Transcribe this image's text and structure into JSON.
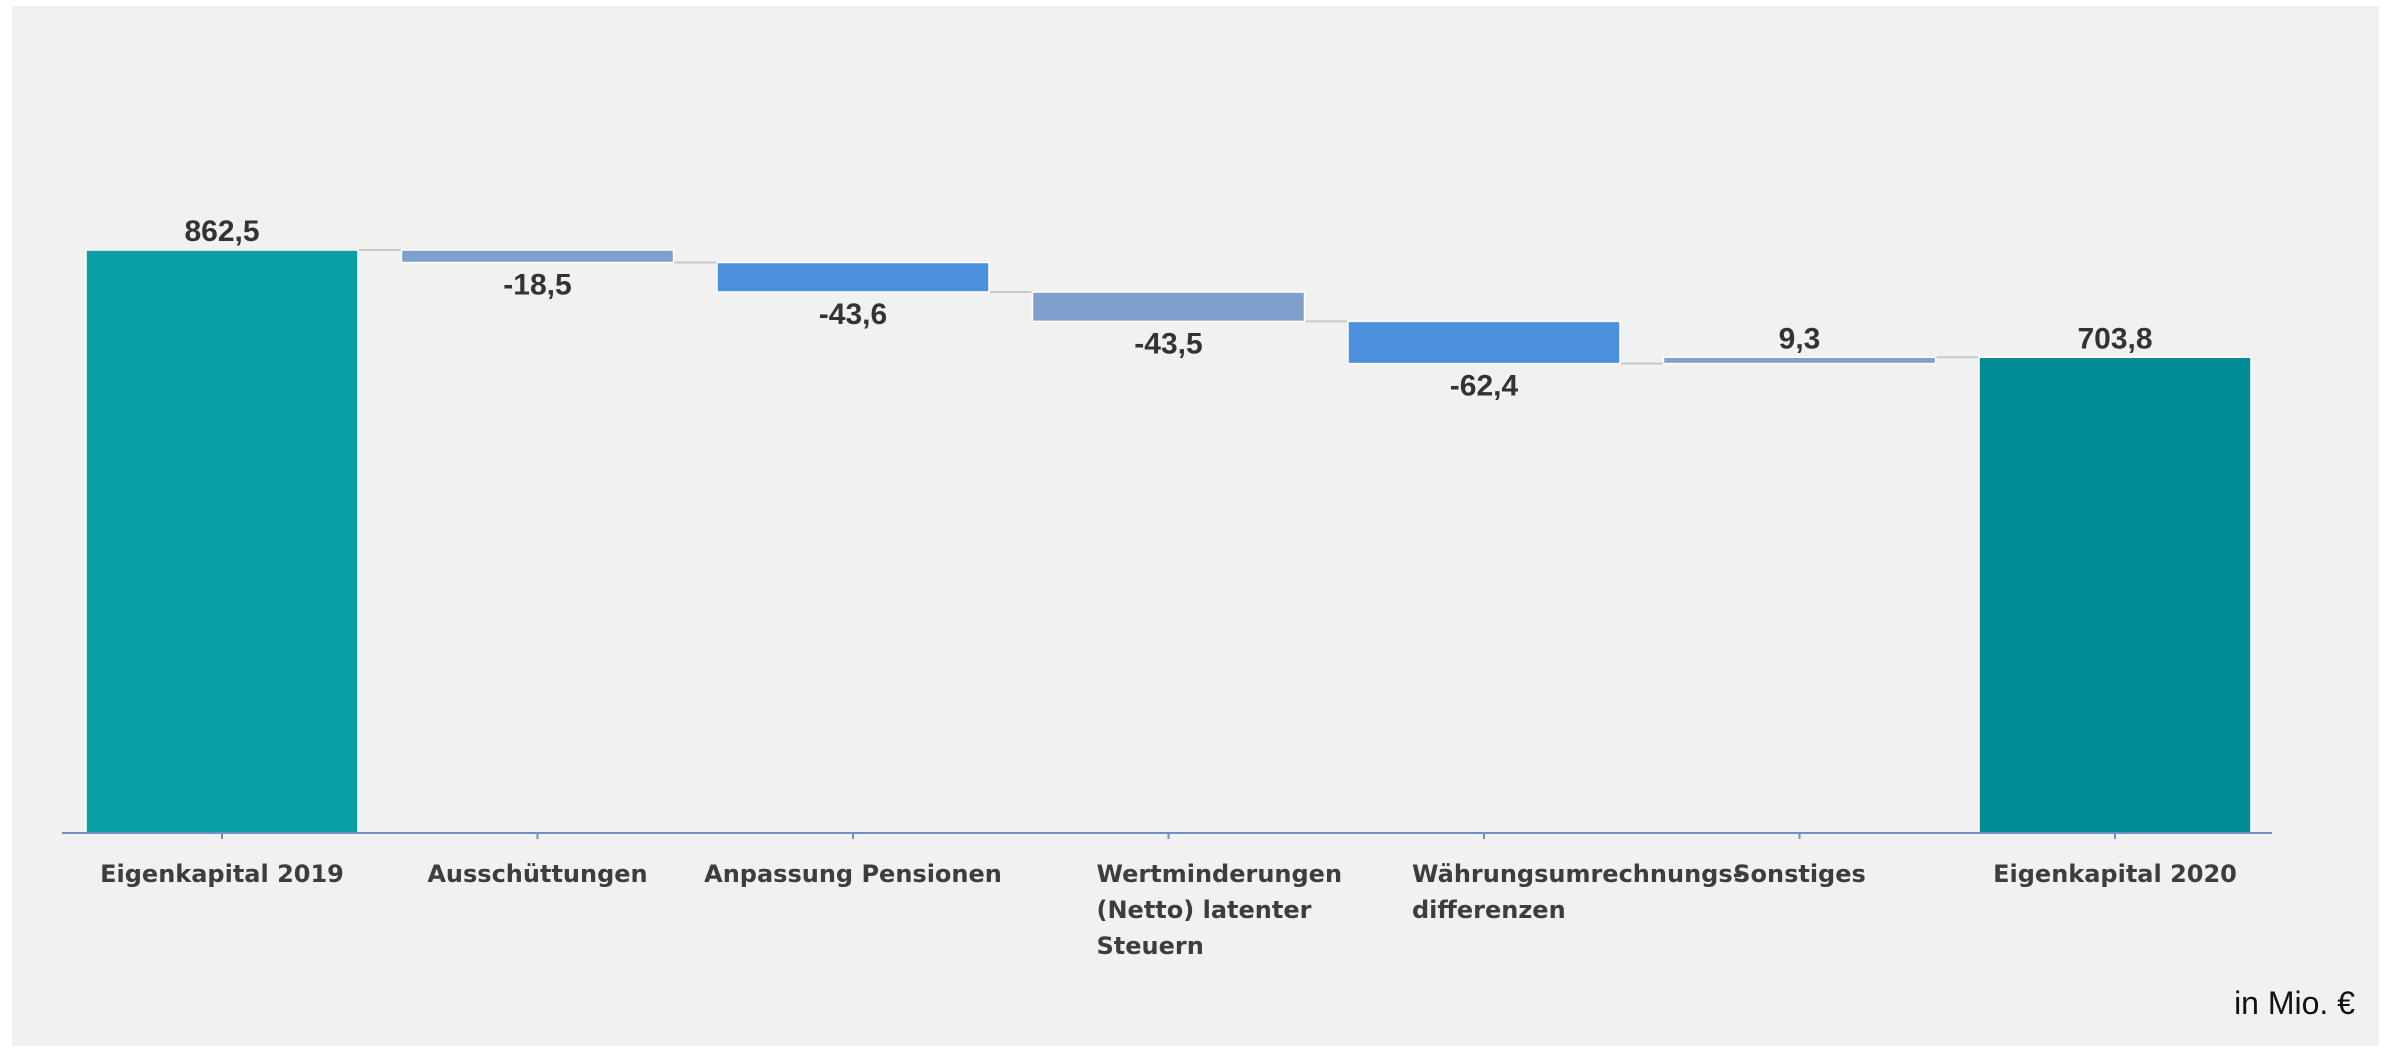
{
  "chart_data": {
    "type": "waterfall",
    "categories": [
      [
        "Eigenkapital 2019"
      ],
      [
        "Ausschüttungen"
      ],
      [
        "Anpassung Pensionen"
      ],
      [
        "Wertminderungen",
        "(Netto) latenter",
        "Steuern"
      ],
      [
        "Währungsumrechnungs-",
        "differenzen"
      ],
      [
        "Sonstiges"
      ],
      [
        "Eigenkapital 2020"
      ]
    ],
    "values": [
      862.5,
      -18.5,
      -43.6,
      -43.5,
      -62.4,
      9.3,
      703.8
    ],
    "value_labels": [
      "862,5",
      "-18,5",
      "-43,6",
      "-43,5",
      "-62,4",
      "9,3",
      "703,8"
    ],
    "bar_kinds": [
      "total",
      "delta",
      "delta",
      "delta",
      "delta",
      "delta",
      "total"
    ],
    "colors": [
      "#0a9ea5",
      "#7f9fcc",
      "#4b90dd",
      "#7f9fcc",
      "#4b90dd",
      "#7f9fcc",
      "#008a93"
    ],
    "axis_color": "#6f8fc7",
    "connector_color": "#c9c9c9",
    "ylim": [
      0,
      862.5
    ],
    "unit": "in Mio. €",
    "grid": false
  }
}
